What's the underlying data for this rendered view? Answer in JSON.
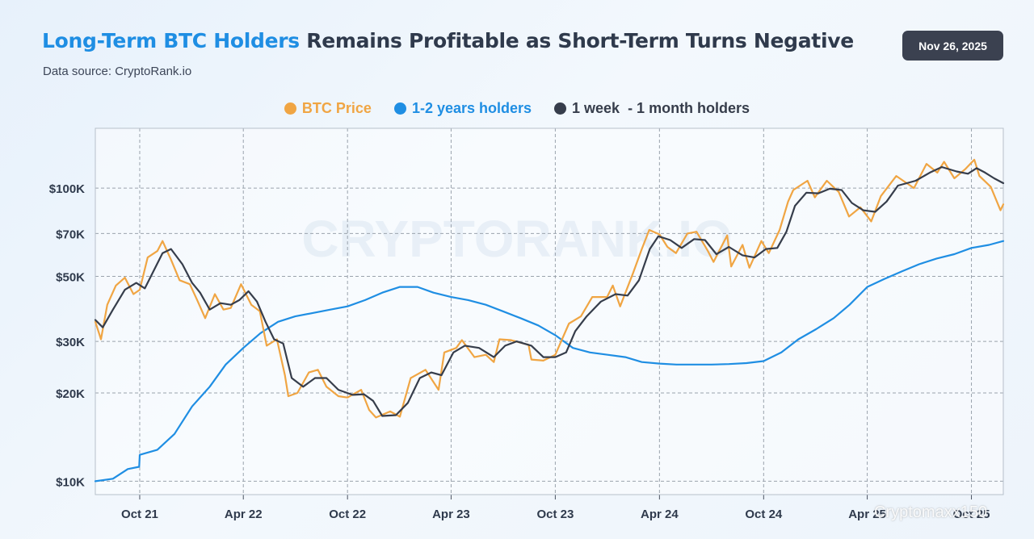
{
  "header": {
    "title_highlight": "Long-Term BTC Holders",
    "title_rest": " Remains Profitable as Short-Term Turns Negative",
    "subtitle": "Data source: CryptoRank.io",
    "date": "Nov 26, 2025"
  },
  "watermark": {
    "text": "CRYPTORANK.IO",
    "corner": "Cryptomaxx150"
  },
  "colors": {
    "btc": "#f0a543",
    "long": "#1f8ee3",
    "short": "#363d4b",
    "grid": "#9aa3ad",
    "title_accent": "#1f8ee3"
  },
  "chart_data": {
    "type": "line",
    "y_scale": "log",
    "ylim": [
      9000,
      160000
    ],
    "x_range": [
      "2021-07-15",
      "2025-11-26"
    ],
    "y_ticks": [
      {
        "value": 10000,
        "label": "$10K"
      },
      {
        "value": 20000,
        "label": "$20K"
      },
      {
        "value": 30000,
        "label": "$30K"
      },
      {
        "value": 50000,
        "label": "$50K"
      },
      {
        "value": 70000,
        "label": "$70K"
      },
      {
        "value": 100000,
        "label": "$100K"
      }
    ],
    "x_ticks": [
      {
        "date": "2021-10-01",
        "label": "Oct 21"
      },
      {
        "date": "2022-04-01",
        "label": "Apr 22"
      },
      {
        "date": "2022-10-01",
        "label": "Oct 22"
      },
      {
        "date": "2023-04-01",
        "label": "Apr 23"
      },
      {
        "date": "2023-10-01",
        "label": "Oct 23"
      },
      {
        "date": "2024-04-01",
        "label": "Apr 24"
      },
      {
        "date": "2024-10-01",
        "label": "Oct 24"
      },
      {
        "date": "2025-04-01",
        "label": "Apr 25"
      },
      {
        "date": "2025-10-01",
        "label": "Oct 25"
      }
    ],
    "legend": [
      "BTC Price",
      "1-2 years holders",
      "1 week  - 1 month holders"
    ],
    "series": [
      {
        "name": "BTC Price",
        "key": "btc",
        "points": [
          [
            "2021-07-15",
            35000
          ],
          [
            "2021-07-25",
            30500
          ],
          [
            "2021-08-05",
            40000
          ],
          [
            "2021-08-20",
            46500
          ],
          [
            "2021-09-05",
            49500
          ],
          [
            "2021-09-20",
            43500
          ],
          [
            "2021-10-01",
            45000
          ],
          [
            "2021-10-15",
            58000
          ],
          [
            "2021-11-01",
            61000
          ],
          [
            "2021-11-10",
            66000
          ],
          [
            "2021-11-25",
            57000
          ],
          [
            "2021-12-10",
            48500
          ],
          [
            "2021-12-28",
            47000
          ],
          [
            "2022-01-10",
            41500
          ],
          [
            "2022-01-24",
            36000
          ],
          [
            "2022-02-10",
            43500
          ],
          [
            "2022-02-25",
            38500
          ],
          [
            "2022-03-10",
            39000
          ],
          [
            "2022-03-28",
            47000
          ],
          [
            "2022-04-15",
            40000
          ],
          [
            "2022-04-30",
            38000
          ],
          [
            "2022-05-12",
            29000
          ],
          [
            "2022-05-30",
            30500
          ],
          [
            "2022-06-13",
            23000
          ],
          [
            "2022-06-19",
            19500
          ],
          [
            "2022-07-05",
            20000
          ],
          [
            "2022-07-25",
            23500
          ],
          [
            "2022-08-10",
            24000
          ],
          [
            "2022-08-25",
            21000
          ],
          [
            "2022-09-15",
            19500
          ],
          [
            "2022-10-01",
            19300
          ],
          [
            "2022-10-25",
            20500
          ],
          [
            "2022-11-08",
            17500
          ],
          [
            "2022-11-20",
            16500
          ],
          [
            "2022-12-15",
            17300
          ],
          [
            "2023-01-01",
            16600
          ],
          [
            "2023-01-20",
            22500
          ],
          [
            "2023-02-15",
            24000
          ],
          [
            "2023-03-10",
            20500
          ],
          [
            "2023-03-20",
            27500
          ],
          [
            "2023-04-10",
            28500
          ],
          [
            "2023-04-20",
            30300
          ],
          [
            "2023-05-12",
            26500
          ],
          [
            "2023-06-01",
            27000
          ],
          [
            "2023-06-15",
            25500
          ],
          [
            "2023-06-25",
            30500
          ],
          [
            "2023-07-15",
            30300
          ],
          [
            "2023-08-15",
            29200
          ],
          [
            "2023-08-20",
            26000
          ],
          [
            "2023-09-10",
            25800
          ],
          [
            "2023-10-01",
            27000
          ],
          [
            "2023-10-25",
            34500
          ],
          [
            "2023-11-15",
            36500
          ],
          [
            "2023-12-05",
            42500
          ],
          [
            "2023-12-31",
            42500
          ],
          [
            "2024-01-10",
            46500
          ],
          [
            "2024-01-23",
            39500
          ],
          [
            "2024-02-15",
            51500
          ],
          [
            "2024-03-01",
            62000
          ],
          [
            "2024-03-14",
            72000
          ],
          [
            "2024-04-01",
            69500
          ],
          [
            "2024-04-15",
            63000
          ],
          [
            "2024-04-30",
            60000
          ],
          [
            "2024-05-20",
            70000
          ],
          [
            "2024-06-05",
            71000
          ],
          [
            "2024-06-25",
            61000
          ],
          [
            "2024-07-05",
            56000
          ],
          [
            "2024-07-29",
            69000
          ],
          [
            "2024-08-05",
            54000
          ],
          [
            "2024-08-25",
            64000
          ],
          [
            "2024-09-06",
            53500
          ],
          [
            "2024-09-27",
            66000
          ],
          [
            "2024-10-10",
            60000
          ],
          [
            "2024-10-29",
            72000
          ],
          [
            "2024-11-13",
            90000
          ],
          [
            "2024-11-22",
            98500
          ],
          [
            "2024-12-17",
            106000
          ],
          [
            "2024-12-30",
            93000
          ],
          [
            "2025-01-20",
            106000
          ],
          [
            "2025-02-10",
            97000
          ],
          [
            "2025-02-28",
            80000
          ],
          [
            "2025-03-20",
            86000
          ],
          [
            "2025-04-08",
            77000
          ],
          [
            "2025-04-25",
            94000
          ],
          [
            "2025-05-22",
            110000
          ],
          [
            "2025-06-22",
            100000
          ],
          [
            "2025-07-14",
            121000
          ],
          [
            "2025-08-02",
            113000
          ],
          [
            "2025-08-14",
            123000
          ],
          [
            "2025-09-01",
            108000
          ],
          [
            "2025-09-20",
            116000
          ],
          [
            "2025-10-06",
            125000
          ],
          [
            "2025-10-15",
            110000
          ],
          [
            "2025-11-04",
            101000
          ],
          [
            "2025-11-21",
            84000
          ],
          [
            "2025-11-26",
            88000
          ]
        ]
      },
      {
        "name": "1-2 years holders",
        "key": "long",
        "points": [
          [
            "2021-07-15",
            10000
          ],
          [
            "2021-08-15",
            10200
          ],
          [
            "2021-09-10",
            11000
          ],
          [
            "2021-09-30",
            11200
          ],
          [
            "2021-10-01",
            12300
          ],
          [
            "2021-11-01",
            12800
          ],
          [
            "2021-12-01",
            14500
          ],
          [
            "2022-01-01",
            18000
          ],
          [
            "2022-02-01",
            21000
          ],
          [
            "2022-03-01",
            25000
          ],
          [
            "2022-04-01",
            28500
          ],
          [
            "2022-05-01",
            32000
          ],
          [
            "2022-06-01",
            35000
          ],
          [
            "2022-07-01",
            36500
          ],
          [
            "2022-08-01",
            37500
          ],
          [
            "2022-09-01",
            38500
          ],
          [
            "2022-10-01",
            39500
          ],
          [
            "2022-11-01",
            41500
          ],
          [
            "2022-12-01",
            44000
          ],
          [
            "2023-01-01",
            46000
          ],
          [
            "2023-02-01",
            46000
          ],
          [
            "2023-03-01",
            44000
          ],
          [
            "2023-04-01",
            42500
          ],
          [
            "2023-05-01",
            41500
          ],
          [
            "2023-06-01",
            40000
          ],
          [
            "2023-07-01",
            38000
          ],
          [
            "2023-08-01",
            36000
          ],
          [
            "2023-09-01",
            34000
          ],
          [
            "2023-10-01",
            31500
          ],
          [
            "2023-11-01",
            28500
          ],
          [
            "2023-12-01",
            27500
          ],
          [
            "2024-01-01",
            27000
          ],
          [
            "2024-02-01",
            26500
          ],
          [
            "2024-03-01",
            25500
          ],
          [
            "2024-04-01",
            25200
          ],
          [
            "2024-05-01",
            25000
          ],
          [
            "2024-06-01",
            25000
          ],
          [
            "2024-07-01",
            25000
          ],
          [
            "2024-08-01",
            25100
          ],
          [
            "2024-09-01",
            25300
          ],
          [
            "2024-10-01",
            25700
          ],
          [
            "2024-11-01",
            27500
          ],
          [
            "2024-12-01",
            30500
          ],
          [
            "2025-01-01",
            33000
          ],
          [
            "2025-02-01",
            36000
          ],
          [
            "2025-03-01",
            40000
          ],
          [
            "2025-04-01",
            46000
          ],
          [
            "2025-05-01",
            49000
          ],
          [
            "2025-06-01",
            52000
          ],
          [
            "2025-07-01",
            55000
          ],
          [
            "2025-08-01",
            57500
          ],
          [
            "2025-09-01",
            59500
          ],
          [
            "2025-10-01",
            62500
          ],
          [
            "2025-11-01",
            64000
          ],
          [
            "2025-11-26",
            66000
          ]
        ]
      },
      {
        "name": "1 week  - 1 month holders",
        "key": "short",
        "points": [
          [
            "2021-07-15",
            35500
          ],
          [
            "2021-07-28",
            33500
          ],
          [
            "2021-08-15",
            38500
          ],
          [
            "2021-09-05",
            45000
          ],
          [
            "2021-09-25",
            47500
          ],
          [
            "2021-10-10",
            45500
          ],
          [
            "2021-10-25",
            52000
          ],
          [
            "2021-11-10",
            60000
          ],
          [
            "2021-11-25",
            62000
          ],
          [
            "2021-12-15",
            55000
          ],
          [
            "2022-01-01",
            47500
          ],
          [
            "2022-01-15",
            44000
          ],
          [
            "2022-02-01",
            38500
          ],
          [
            "2022-02-20",
            40500
          ],
          [
            "2022-03-10",
            40000
          ],
          [
            "2022-03-25",
            41500
          ],
          [
            "2022-04-10",
            44500
          ],
          [
            "2022-04-25",
            41000
          ],
          [
            "2022-05-10",
            35000
          ],
          [
            "2022-05-25",
            30500
          ],
          [
            "2022-06-10",
            29500
          ],
          [
            "2022-06-25",
            22500
          ],
          [
            "2022-07-15",
            21000
          ],
          [
            "2022-08-05",
            22500
          ],
          [
            "2022-08-25",
            22500
          ],
          [
            "2022-09-15",
            20500
          ],
          [
            "2022-10-10",
            19700
          ],
          [
            "2022-10-30",
            19800
          ],
          [
            "2022-11-15",
            18800
          ],
          [
            "2022-12-01",
            16700
          ],
          [
            "2022-12-25",
            16800
          ],
          [
            "2023-01-15",
            18500
          ],
          [
            "2023-02-05",
            22500
          ],
          [
            "2023-02-25",
            23500
          ],
          [
            "2023-03-15",
            23000
          ],
          [
            "2023-04-05",
            27500
          ],
          [
            "2023-04-25",
            29000
          ],
          [
            "2023-05-20",
            28500
          ],
          [
            "2023-06-15",
            26500
          ],
          [
            "2023-07-05",
            29000
          ],
          [
            "2023-07-25",
            30000
          ],
          [
            "2023-08-20",
            29000
          ],
          [
            "2023-09-10",
            26500
          ],
          [
            "2023-10-01",
            26500
          ],
          [
            "2023-10-20",
            27500
          ],
          [
            "2023-11-05",
            32500
          ],
          [
            "2023-11-25",
            36500
          ],
          [
            "2023-12-20",
            41000
          ],
          [
            "2024-01-15",
            43500
          ],
          [
            "2024-02-05",
            43000
          ],
          [
            "2024-02-25",
            48500
          ],
          [
            "2024-03-15",
            62000
          ],
          [
            "2024-03-30",
            68500
          ],
          [
            "2024-04-20",
            66500
          ],
          [
            "2024-05-10",
            62500
          ],
          [
            "2024-06-01",
            67000
          ],
          [
            "2024-06-20",
            66500
          ],
          [
            "2024-07-10",
            59500
          ],
          [
            "2024-08-01",
            63000
          ],
          [
            "2024-08-25",
            59000
          ],
          [
            "2024-09-15",
            58000
          ],
          [
            "2024-10-05",
            62000
          ],
          [
            "2024-10-25",
            62500
          ],
          [
            "2024-11-10",
            71000
          ],
          [
            "2024-11-25",
            87000
          ],
          [
            "2024-12-15",
            96500
          ],
          [
            "2025-01-05",
            96000
          ],
          [
            "2025-01-25",
            99500
          ],
          [
            "2025-02-15",
            98500
          ],
          [
            "2025-03-05",
            89000
          ],
          [
            "2025-03-25",
            84000
          ],
          [
            "2025-04-15",
            83000
          ],
          [
            "2025-05-05",
            90000
          ],
          [
            "2025-05-25",
            102000
          ],
          [
            "2025-06-25",
            106000
          ],
          [
            "2025-07-20",
            113000
          ],
          [
            "2025-08-10",
            118000
          ],
          [
            "2025-09-05",
            114000
          ],
          [
            "2025-09-25",
            112000
          ],
          [
            "2025-10-10",
            117000
          ],
          [
            "2025-10-25",
            113000
          ],
          [
            "2025-11-10",
            108000
          ],
          [
            "2025-11-26",
            104000
          ]
        ]
      }
    ]
  }
}
